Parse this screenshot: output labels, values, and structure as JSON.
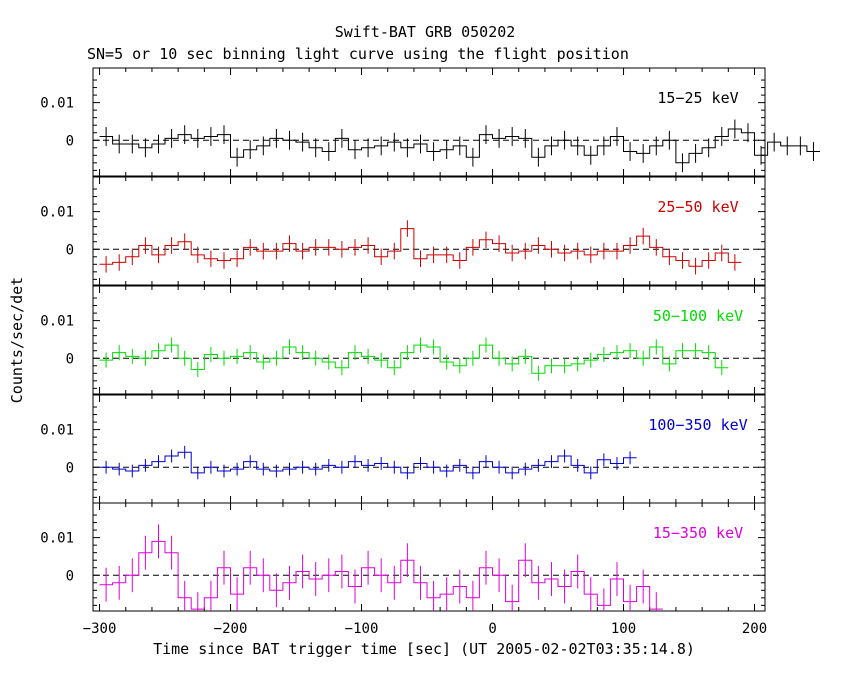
{
  "chart_data": {
    "type": "line",
    "title": "Swift-BAT GRB 050202",
    "subtitle": "SN=5 or 10 sec binning light curve using the flight position",
    "xlabel": "Time since BAT trigger time [sec] (UT 2005-02-02T03:35:14.8)",
    "ylabel": "Counts/sec/det",
    "xlim": [
      -305,
      208
    ],
    "xticks": [
      -300,
      -200,
      -100,
      0,
      100,
      200
    ],
    "xtick_labels": [
      "−300",
      "−200",
      "−100",
      "0",
      "100",
      "200"
    ],
    "bin_width": 10,
    "x_start": -295,
    "panels": [
      {
        "name": "15-25 keV",
        "label": "15−25 keV",
        "color": "#000000",
        "ylim": [
          -0.0095,
          0.0192
        ],
        "yticks": [
          0,
          0.01
        ],
        "ytick_labels": [
          "0",
          "0.01"
        ],
        "err": 0.0025,
        "values": [
          0.001,
          -0.001,
          -0.001,
          -0.002,
          -0.001,
          0.0005,
          0.0015,
          0.0005,
          0.001,
          0.0015,
          -0.0045,
          -0.0025,
          -0.0015,
          0.0005,
          0.0,
          -0.0005,
          -0.002,
          -0.003,
          0.0005,
          -0.0025,
          -0.002,
          -0.0015,
          -0.0005,
          -0.002,
          -0.001,
          -0.003,
          -0.0025,
          -0.0015,
          -0.0045,
          0.0015,
          0.0005,
          0.001,
          0.0005,
          -0.0045,
          -0.0015,
          0.0,
          -0.0015,
          -0.004,
          -0.0015,
          0.001,
          -0.003,
          -0.0035,
          -0.0015,
          0.0,
          -0.006,
          -0.0035,
          -0.002,
          0.001,
          0.003,
          0.002,
          -0.004,
          -0.0005,
          -0.0015,
          -0.0015,
          -0.003
        ]
      },
      {
        "name": "25-50 keV",
        "label": "25−50 keV",
        "color": "#cc0000",
        "ylim": [
          -0.0095,
          0.0192
        ],
        "yticks": [
          0,
          0.01
        ],
        "ytick_labels": [
          "0",
          "0.01"
        ],
        "err": 0.0022,
        "values": [
          -0.004,
          -0.0035,
          -0.002,
          0.001,
          -0.0015,
          0.001,
          0.002,
          -0.0015,
          -0.0025,
          -0.003,
          -0.0025,
          0.0005,
          -0.0005,
          -0.0005,
          0.0015,
          -0.0005,
          0.0005,
          0.0005,
          0.0,
          0.0005,
          0.001,
          -0.002,
          -0.0005,
          0.0055,
          -0.0025,
          -0.0015,
          -0.0015,
          -0.003,
          0.0005,
          0.0025,
          0.0015,
          -0.001,
          -0.0005,
          0.001,
          0.0,
          -0.001,
          -0.0005,
          -0.0015,
          -0.0005,
          -0.0005,
          0.001,
          0.0035,
          0.0005,
          -0.002,
          -0.003,
          -0.0045,
          -0.003,
          -0.001,
          -0.0035
        ]
      },
      {
        "name": "50-100 keV",
        "label": "50−100 keV",
        "color": "#00dd00",
        "ylim": [
          -0.0095,
          0.0192
        ],
        "yticks": [
          0,
          0.01
        ],
        "ytick_labels": [
          "0",
          "0.01"
        ],
        "err": 0.002,
        "values": [
          -0.0005,
          0.0015,
          0.0005,
          0.0,
          0.002,
          0.0035,
          0.0,
          -0.003,
          0.001,
          0.0,
          0.0005,
          0.0015,
          -0.001,
          0.0,
          0.003,
          0.0015,
          0.0,
          -0.001,
          -0.0025,
          0.0015,
          0.0005,
          -0.0005,
          -0.0025,
          0.0015,
          0.0035,
          0.003,
          -0.001,
          -0.002,
          0.0,
          0.0035,
          0.0,
          -0.0015,
          0.0005,
          -0.004,
          -0.002,
          -0.002,
          -0.0015,
          -0.0005,
          0.001,
          0.0015,
          0.002,
          0.0,
          0.003,
          -0.0015,
          0.002,
          0.002,
          0.0015,
          -0.0025
        ]
      },
      {
        "name": "100-350 keV",
        "label": "100−350 keV",
        "color": "#0000cc",
        "ylim": [
          -0.0095,
          0.0192
        ],
        "yticks": [
          0,
          0.01
        ],
        "ytick_labels": [
          "0",
          "0.01"
        ],
        "err": 0.0017,
        "values": [
          0.0,
          -0.0005,
          -0.001,
          0.0005,
          0.0015,
          0.003,
          0.004,
          -0.0015,
          0.0,
          -0.001,
          -0.0005,
          0.0015,
          -0.0005,
          -0.001,
          -0.0005,
          0.0,
          -0.0005,
          0.0005,
          0.0,
          0.0015,
          0.0005,
          0.001,
          0.0,
          -0.0015,
          0.001,
          0.0,
          -0.001,
          0.0005,
          -0.0015,
          0.0015,
          0.0,
          -0.0015,
          -0.0005,
          0.0005,
          0.0015,
          0.003,
          0.0005,
          -0.0015,
          0.002,
          0.001,
          0.0025
        ]
      },
      {
        "name": "15-350 keV",
        "label": "15−350 keV",
        "color": "#dd00dd",
        "ylim": [
          -0.0095,
          0.0192
        ],
        "yticks": [
          0,
          0.01
        ],
        "ytick_labels": [
          "0",
          "0.01"
        ],
        "err": 0.0045,
        "values": [
          -0.0025,
          -0.002,
          0.0,
          0.006,
          0.009,
          0.006,
          -0.006,
          -0.009,
          -0.006,
          0.002,
          -0.005,
          0.002,
          0.0,
          -0.004,
          -0.002,
          0.001,
          -0.001,
          0.0,
          0.001,
          -0.003,
          0.002,
          0.0,
          -0.002,
          0.004,
          -0.002,
          -0.006,
          -0.005,
          -0.003,
          -0.006,
          0.002,
          0.0,
          -0.007,
          0.004,
          -0.002,
          -0.001,
          -0.003,
          0.001,
          -0.005,
          -0.008,
          -0.001,
          -0.007,
          -0.003,
          -0.009
        ]
      }
    ]
  }
}
